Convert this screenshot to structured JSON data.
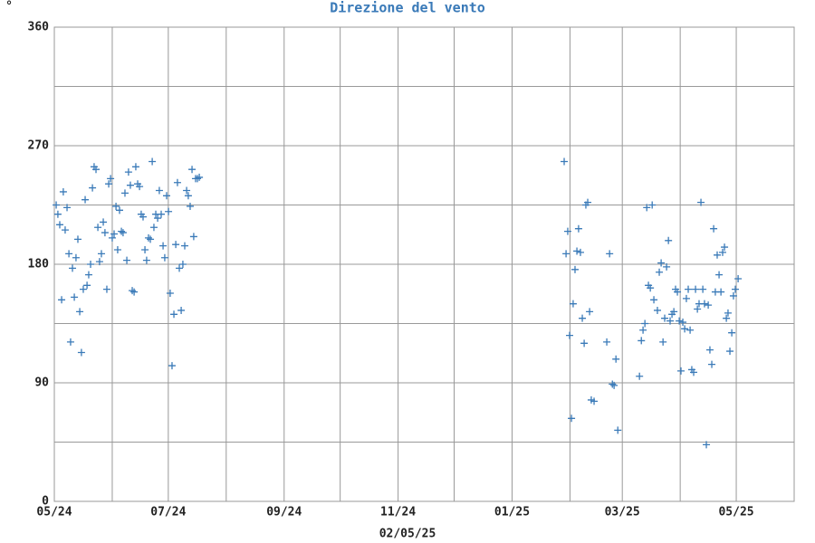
{
  "chart_data": {
    "type": "scatter",
    "title": "Direzione del vento",
    "ylabel": "°",
    "xlabel": "02/05/25",
    "color": "#3a7ab8",
    "grid": true,
    "ylim": [
      0,
      360
    ],
    "yticks": [
      0,
      90,
      180,
      270,
      360
    ],
    "yminor": [
      45,
      135,
      225,
      315
    ],
    "xlim": [
      0,
      396
    ],
    "xticks": [
      {
        "value": 0,
        "label": "05/24"
      },
      {
        "value": 61,
        "label": "07/24"
      },
      {
        "value": 123,
        "label": "09/24"
      },
      {
        "value": 184,
        "label": "11/24"
      },
      {
        "value": 245,
        "label": "01/25"
      },
      {
        "value": 304,
        "label": "03/25"
      },
      {
        "value": 365,
        "label": "05/25"
      }
    ],
    "xminor": [
      31,
      92,
      153,
      214,
      276,
      335
    ],
    "x": [
      1.0,
      1.9,
      2.9,
      3.9,
      4.8,
      5.8,
      6.8,
      7.8,
      8.7,
      9.7,
      10.7,
      11.6,
      12.6,
      13.6,
      14.5,
      15.5,
      16.5,
      17.5,
      18.4,
      19.4,
      20.4,
      21.3,
      22.3,
      23.3,
      24.2,
      25.2,
      26.2,
      27.1,
      28.1,
      29.1,
      30.1,
      31.0,
      32.0,
      33.0,
      33.9,
      34.9,
      35.9,
      36.8,
      37.8,
      38.8,
      39.7,
      40.7,
      41.7,
      42.7,
      43.6,
      44.6,
      45.6,
      46.5,
      47.5,
      48.5,
      49.4,
      50.4,
      51.4,
      52.4,
      53.3,
      54.3,
      55.3,
      56.2,
      57.2,
      58.2,
      59.1,
      60.1,
      61.1,
      62.0,
      63.0,
      64.0,
      65.0,
      65.9,
      66.9,
      67.9,
      68.8,
      69.8,
      70.8,
      71.7,
      72.7,
      73.7,
      74.6,
      75.6,
      76.6,
      77.6,
      272.9,
      273.9,
      274.8,
      275.8,
      276.8,
      277.7,
      278.7,
      279.7,
      280.6,
      281.6,
      282.6,
      283.6,
      284.5,
      285.5,
      286.5,
      287.4,
      288.9,
      295.7,
      297.2,
      298.7,
      299.6,
      300.6,
      301.6,
      313.2,
      314.2,
      315.1,
      316.1,
      317.1,
      318.0,
      319.0,
      320.0,
      320.9,
      322.8,
      323.8,
      324.8,
      325.8,
      326.7,
      327.7,
      328.7,
      329.6,
      330.6,
      331.6,
      332.5,
      333.5,
      334.5,
      335.4,
      336.4,
      337.4,
      338.3,
      339.3,
      340.3,
      341.2,
      342.2,
      343.2,
      344.2,
      345.1,
      346.1,
      347.1,
      348.0,
      349.0,
      350.0,
      350.9,
      351.9,
      352.9,
      353.8,
      354.8,
      355.8,
      356.8,
      357.7,
      358.7,
      359.7,
      360.6,
      361.6,
      362.6,
      363.5,
      364.5,
      366.0
    ],
    "values": [
      225,
      218,
      210,
      153,
      235,
      206,
      223,
      188,
      121,
      177,
      155,
      185,
      199,
      144,
      113,
      161,
      229,
      164,
      172,
      180,
      238,
      254,
      252,
      208,
      182,
      188,
      212,
      204,
      161,
      241,
      245,
      200,
      203,
      224,
      191,
      221,
      205,
      204,
      234,
      183,
      250,
      240,
      160,
      159,
      254,
      241,
      239,
      218,
      216,
      191,
      183,
      200,
      199,
      258,
      208,
      218,
      215,
      236,
      218,
      194,
      185,
      232,
      220,
      158,
      103,
      142,
      195,
      242,
      177,
      145,
      180,
      194,
      236,
      232,
      224,
      252,
      201,
      245,
      245,
      246,
      258,
      188,
      205,
      126,
      63,
      150,
      176,
      190,
      207,
      189,
      139,
      120,
      225,
      227,
      144,
      77,
      76,
      121,
      188,
      89,
      88,
      108,
      54,
      95,
      122,
      130,
      135,
      223,
      164,
      162,
      225,
      153,
      145,
      174,
      181,
      121,
      139,
      178,
      198,
      137,
      142,
      144,
      161,
      159,
      137,
      99,
      136,
      131,
      154,
      161,
      130,
      100,
      98,
      161,
      146,
      150,
      227,
      161,
      150,
      43,
      149,
      115,
      104,
      207,
      159,
      187,
      172,
      159,
      189,
      193,
      139,
      143,
      114,
      128,
      156,
      161,
      169
    ]
  }
}
